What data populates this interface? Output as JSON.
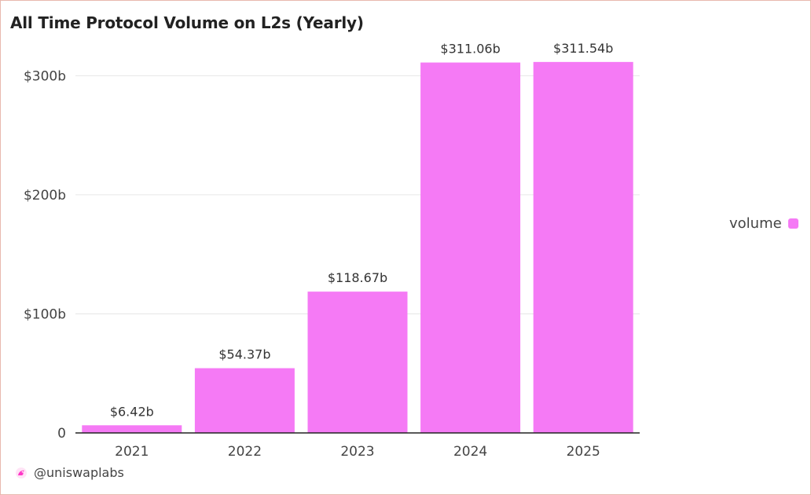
{
  "chart_data": {
    "type": "bar",
    "title": "All Time Protocol Volume on L2s (Yearly)",
    "xlabel": "",
    "ylabel": "",
    "categories": [
      "2021",
      "2022",
      "2023",
      "2024",
      "2025"
    ],
    "series": [
      {
        "name": "volume",
        "values": [
          6.42,
          54.37,
          118.67,
          311.06,
          311.54
        ],
        "data_labels": [
          "$6.42b",
          "$54.37b",
          "$118.67b",
          "$311.06b",
          "$311.54b"
        ]
      }
    ],
    "ylim": [
      0,
      322
    ],
    "yticks": [
      {
        "value": 0,
        "label": "0"
      },
      {
        "value": 100,
        "label": "$100b"
      },
      {
        "value": 200,
        "label": "$200b"
      },
      {
        "value": 300,
        "label": "$300b"
      }
    ],
    "grid": true,
    "legend_position": "right",
    "bar_color": "#f57af5"
  },
  "watermark": {
    "handle": "@uniswaplabs",
    "icon": "uniswap-unicorn-icon"
  }
}
